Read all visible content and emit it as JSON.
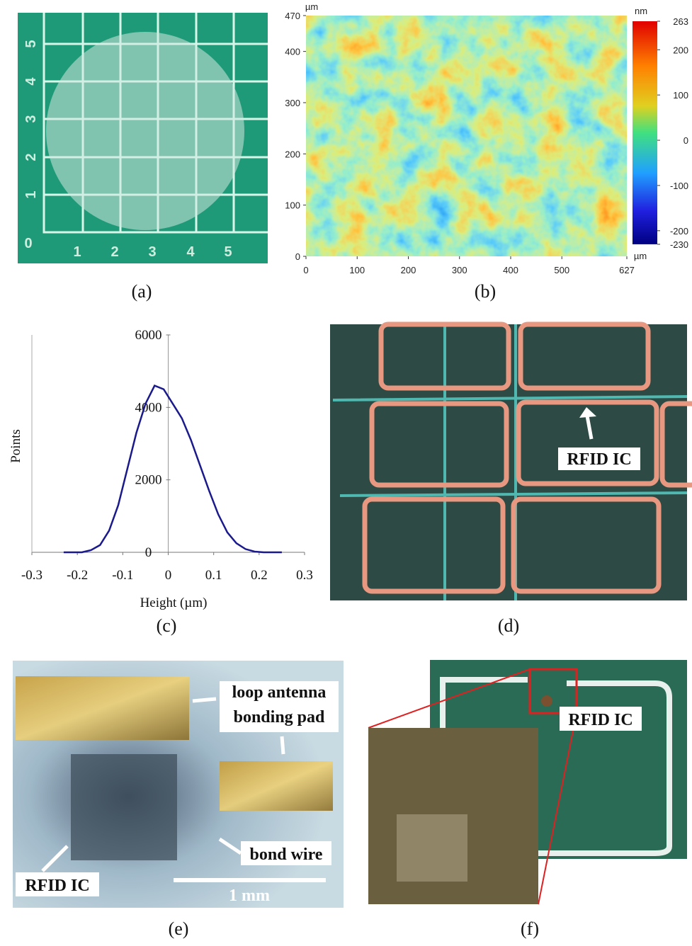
{
  "panel_labels": [
    "(a)",
    "(b)",
    "(c)",
    "(d)",
    "(e)",
    "(f)"
  ],
  "ruler": {
    "origin": "0",
    "x": [
      "1",
      "2",
      "3",
      "4",
      "5"
    ],
    "y": [
      "1",
      "2",
      "3",
      "4",
      "5"
    ]
  },
  "annotations": {
    "d": [
      "RFID IC"
    ],
    "e": [
      "loop antenna",
      "bonding pad",
      "bond wire",
      "RFID IC",
      "1 mm"
    ],
    "f": [
      "RFID IC"
    ]
  },
  "chart_data": [
    {
      "type": "heatmap",
      "x_unit": "µm",
      "y_unit": "µm",
      "xlim": [
        0,
        627
      ],
      "xticks": [
        0,
        100,
        200,
        300,
        400,
        500,
        627
      ],
      "ylim": [
        0,
        470
      ],
      "yticks": [
        0,
        100,
        200,
        300,
        400,
        470
      ],
      "colorbar": {
        "unit": "nm",
        "lim": [
          -230,
          263
        ],
        "ticks": [
          263,
          200,
          100,
          0,
          -100,
          -200,
          -230
        ]
      }
    },
    {
      "type": "line",
      "x_label": "Height (µm)",
      "y_label": "Points",
      "xlim": [
        -0.3,
        0.3
      ],
      "xticks": [
        -0.3,
        -0.2,
        -0.1,
        0,
        0.1,
        0.2,
        0.3
      ],
      "ylim": [
        0,
        6000
      ],
      "yticks": [
        0,
        2000,
        4000,
        6000
      ],
      "x": [
        -0.23,
        -0.21,
        -0.19,
        -0.17,
        -0.15,
        -0.13,
        -0.11,
        -0.09,
        -0.07,
        -0.05,
        -0.03,
        -0.01,
        0.01,
        0.03,
        0.05,
        0.07,
        0.09,
        0.11,
        0.13,
        0.15,
        0.17,
        0.19,
        0.21,
        0.23,
        0.25
      ],
      "series": [
        {
          "color": "#1a1a8c",
          "values": [
            0,
            0,
            0,
            60,
            200,
            600,
            1300,
            2300,
            3300,
            4100,
            4600,
            4500,
            4100,
            3700,
            3100,
            2400,
            1700,
            1050,
            550,
            250,
            90,
            20,
            0,
            0,
            0
          ]
        }
      ]
    }
  ]
}
